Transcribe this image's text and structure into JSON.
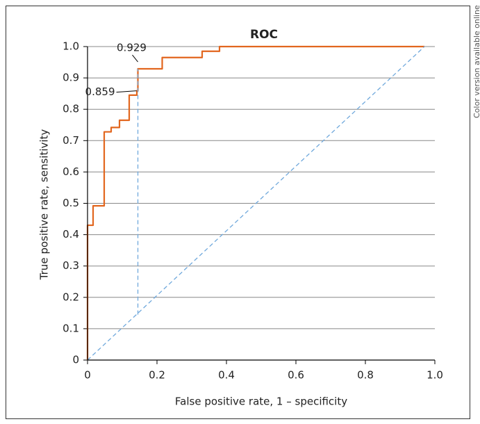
{
  "chart_data": {
    "type": "line",
    "title": "ROC",
    "xlabel": "False positive rate, 1 – specificity",
    "ylabel": "True positive rate, sensitivity",
    "side_note": "Color version available online",
    "xlim": [
      0,
      1
    ],
    "ylim": [
      0,
      1
    ],
    "xticks": [
      0,
      0.2,
      0.4,
      0.6,
      0.8,
      {
        "value": 1,
        "label": "1.0"
      }
    ],
    "yticks": [
      0,
      0.1,
      0.2,
      0.3,
      0.4,
      0.5,
      0.6,
      0.7,
      0.8,
      0.9,
      {
        "value": 1,
        "label": "1.0"
      }
    ],
    "grid": true,
    "series": [
      {
        "color": "#e2661e",
        "style": "solid",
        "x": [
          0,
          0,
          0.016,
          0.016,
          0.048,
          0.048,
          0.068,
          0.068,
          0.092,
          0.092,
          0.12,
          0.12,
          0.142,
          0.142,
          0.145,
          0.145,
          0.215,
          0.215,
          0.33,
          0.33,
          0.38,
          0.38,
          0.97
        ],
        "values": [
          0,
          0.43,
          0.43,
          0.492,
          0.492,
          0.728,
          0.728,
          0.742,
          0.742,
          0.765,
          0.765,
          0.845,
          0.845,
          0.859,
          0.859,
          0.929,
          0.929,
          0.965,
          0.965,
          0.985,
          0.985,
          1,
          1
        ]
      },
      {
        "color": "#6fa8dc",
        "style": "dashed",
        "x": [
          0,
          0.97
        ],
        "values": [
          0,
          1
        ]
      },
      {
        "color": "#6fa8dc",
        "style": "dashed",
        "x": [
          0.145,
          0.145
        ],
        "values": [
          0.145,
          0.929
        ]
      }
    ],
    "annotations": [
      {
        "label": "0.929",
        "value": 0.929,
        "x": 0.145
      },
      {
        "label": "0.859",
        "value": 0.859,
        "x": 0.145
      }
    ]
  }
}
